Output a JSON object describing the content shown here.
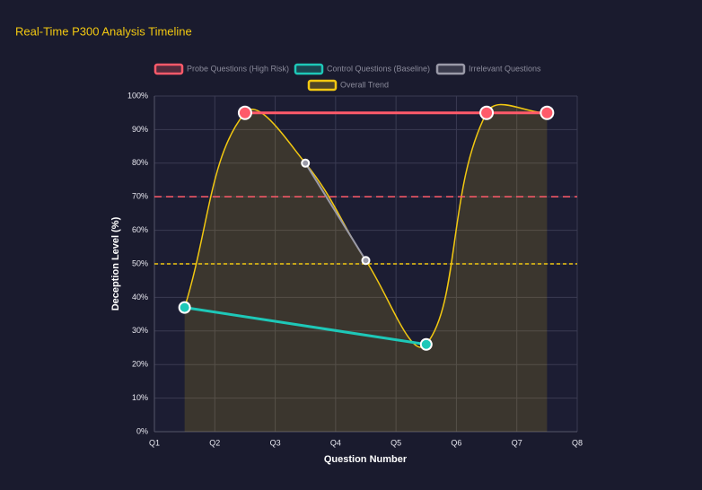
{
  "chart_data": {
    "type": "line",
    "title": "Real-Time P300 Analysis Timeline",
    "x_label": "Question Number",
    "y_label": "Deception Level (%)",
    "xlim": [
      1,
      8
    ],
    "xticks": [
      {
        "value": 1,
        "label": "Q1"
      },
      {
        "value": 2,
        "label": "Q2"
      },
      {
        "value": 3,
        "label": "Q3"
      },
      {
        "value": 4,
        "label": "Q4"
      },
      {
        "value": 5,
        "label": "Q5"
      },
      {
        "value": 6,
        "label": "Q6"
      },
      {
        "value": 7,
        "label": "Q7"
      },
      {
        "value": 8,
        "label": "Q8"
      }
    ],
    "ylim": [
      0,
      100
    ],
    "yticks": [
      {
        "value": 0,
        "label": "0%"
      },
      {
        "value": 10,
        "label": "10%"
      },
      {
        "value": 20,
        "label": "20%"
      },
      {
        "value": 30,
        "label": "30%"
      },
      {
        "value": 40,
        "label": "40%"
      },
      {
        "value": 50,
        "label": "50%"
      },
      {
        "value": 60,
        "label": "60%"
      },
      {
        "value": 70,
        "label": "70%"
      },
      {
        "value": 80,
        "label": "80%"
      },
      {
        "value": 90,
        "label": "90%"
      },
      {
        "value": 100,
        "label": "100%"
      }
    ],
    "grid": true,
    "legend": "top",
    "thresholds": [
      {
        "value": 70,
        "color": "#ff5a6a"
      },
      {
        "value": 50,
        "color": "#f2c811"
      }
    ],
    "series": [
      {
        "name": "Probe Questions (High Risk)",
        "color": "#ff5a6a",
        "x": [
          2.5,
          6.5,
          7.5
        ],
        "values": [
          95,
          95,
          95
        ]
      },
      {
        "name": "Control Questions (Baseline)",
        "color": "#1ec8b8",
        "x": [
          1.5,
          5.5
        ],
        "values": [
          37,
          26
        ]
      },
      {
        "name": "Irrelevant Questions",
        "color": "#9a9aa8",
        "x": [
          3.5,
          4.5
        ],
        "values": [
          80,
          51
        ]
      },
      {
        "name": "Overall Trend",
        "color": "#f2c811",
        "x": [
          1.5,
          2.5,
          3.5,
          4.5,
          5.5,
          6.5,
          7.5
        ],
        "values": [
          37,
          95,
          80,
          51,
          26,
          95,
          95
        ]
      }
    ]
  }
}
